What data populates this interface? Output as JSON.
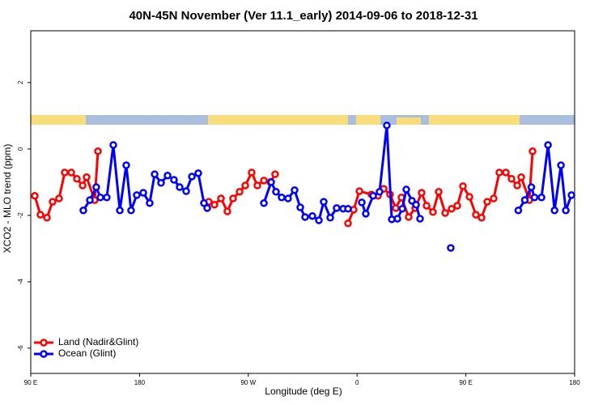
{
  "chart_data": {
    "type": "line",
    "title": "40N-45N November (Ver 11.1_early)   2014-09-06 to 2018-12-31",
    "x_label": "Longitude (deg E)",
    "y_label": "XCO2 - MLO trend (ppm)",
    "xlim": [
      90,
      540
    ],
    "ylim": [
      -6.76,
      3.56
    ],
    "xticks": [
      {
        "value": 90,
        "label": "90 E"
      },
      {
        "value": 180,
        "label": "180"
      },
      {
        "value": 270,
        "label": "90 W"
      },
      {
        "value": 360,
        "label": "0"
      },
      {
        "value": 450,
        "label": "90 E"
      },
      {
        "value": 540,
        "label": "180"
      }
    ],
    "yticks": [
      -6,
      -4,
      -2,
      0,
      2
    ],
    "legend": "bottom-left",
    "series": [
      {
        "name": "Land (Nadir&Glint)",
        "color": "#ff0000",
        "x": [
          93.3,
          98,
          103.4,
          108.1,
          113.4,
          118.1,
          123.5,
          128.2,
          132.9,
          136.2,
          142.9,
          145.6,
          null,
          237.3,
          242,
          247.4,
          252.7,
          257.4,
          262.8,
          267.5,
          272.8,
          277.5,
          282.9,
          288.2,
          292.2,
          null,
          352.5,
          357.2,
          361.9,
          371.9,
          377.3,
          382,
          387.3,
          392,
          396.7,
          402.7,
          408.1,
          413.4,
          417.5,
          422.8,
          427.5,
          432.9,
          438.2,
          442.9,
          447.6,
          453,
          458.3,
          463,
          467.7,
          473,
          477.7,
          483.1,
          487.8,
          492.5,
          495.8,
          502.5,
          505.2
        ],
        "values": [
          -1.41,
          -1.98,
          -2.07,
          -1.59,
          -1.49,
          -0.71,
          -0.71,
          -0.9,
          -1.1,
          -0.85,
          -1.54,
          -0.07,
          null,
          -1.59,
          -1.68,
          -1.49,
          -1.88,
          -1.49,
          -1.29,
          -1.1,
          -0.71,
          -1.1,
          -0.95,
          -1.0,
          -0.76,
          null,
          -2.24,
          -1.83,
          -1.27,
          -1.37,
          -1.41,
          -1.2,
          -1.37,
          -1.78,
          -1.46,
          -2.05,
          -1.78,
          -1.32,
          -1.71,
          -1.9,
          -1.29,
          -1.93,
          -1.8,
          -1.71,
          -1.12,
          -1.44,
          -1.98,
          -2.07,
          -1.59,
          -1.49,
          -0.71,
          -0.71,
          -0.9,
          -1.1,
          -0.85,
          -1.54,
          -0.07
        ]
      },
      {
        "name": "Ocean (Glint)",
        "color": "#0000ff",
        "x": [
          133.5,
          138.9,
          144.2,
          147.6,
          152.9,
          158.3,
          163.7,
          169,
          173,
          177.7,
          183.1,
          188.4,
          192.5,
          197.8,
          203.2,
          208.5,
          213.2,
          218.6,
          223.3,
          228.6,
          233.3,
          236,
          null,
          282.9,
          288.9,
          292.9,
          297.6,
          302.9,
          308.3,
          313,
          317,
          323,
          328.4,
          332.4,
          337.8,
          343.1,
          348.5,
          352.5,
          null,
          363.9,
          367.2,
          373.3,
          378.6,
          384.6,
          388.7,
          393.4,
          397.4,
          400.7,
          405.4,
          408.8,
          412.1,
          null,
          437.5,
          null,
          493.4,
          498.8,
          504.2,
          506.8,
          512.6,
          518,
          523.4,
          528.7,
          532.7,
          537.4
        ],
        "values": [
          -1.85,
          -1.54,
          -1.15,
          -1.46,
          -1.46,
          0.12,
          -1.85,
          -0.49,
          -1.85,
          -1.39,
          -1.32,
          -1.63,
          -0.76,
          -1.02,
          -0.8,
          -0.93,
          -1.15,
          -1.27,
          -0.83,
          -0.73,
          -1.63,
          -1.78,
          null,
          -1.63,
          -1.0,
          -1.29,
          -1.46,
          -1.49,
          -1.24,
          -1.76,
          -2.05,
          -2.02,
          -2.15,
          -1.59,
          -2.07,
          -1.78,
          -1.8,
          -1.8,
          null,
          -1.61,
          -1.95,
          -1.41,
          -1.29,
          0.71,
          -2.12,
          -2.1,
          -1.8,
          -1.22,
          -1.56,
          -1.68,
          -2.1,
          null,
          -2.98,
          null,
          -1.85,
          -1.54,
          -1.15,
          -1.46,
          -1.46,
          0.12,
          -1.85,
          -0.49,
          -1.85,
          -1.39
        ]
      }
    ]
  }
}
